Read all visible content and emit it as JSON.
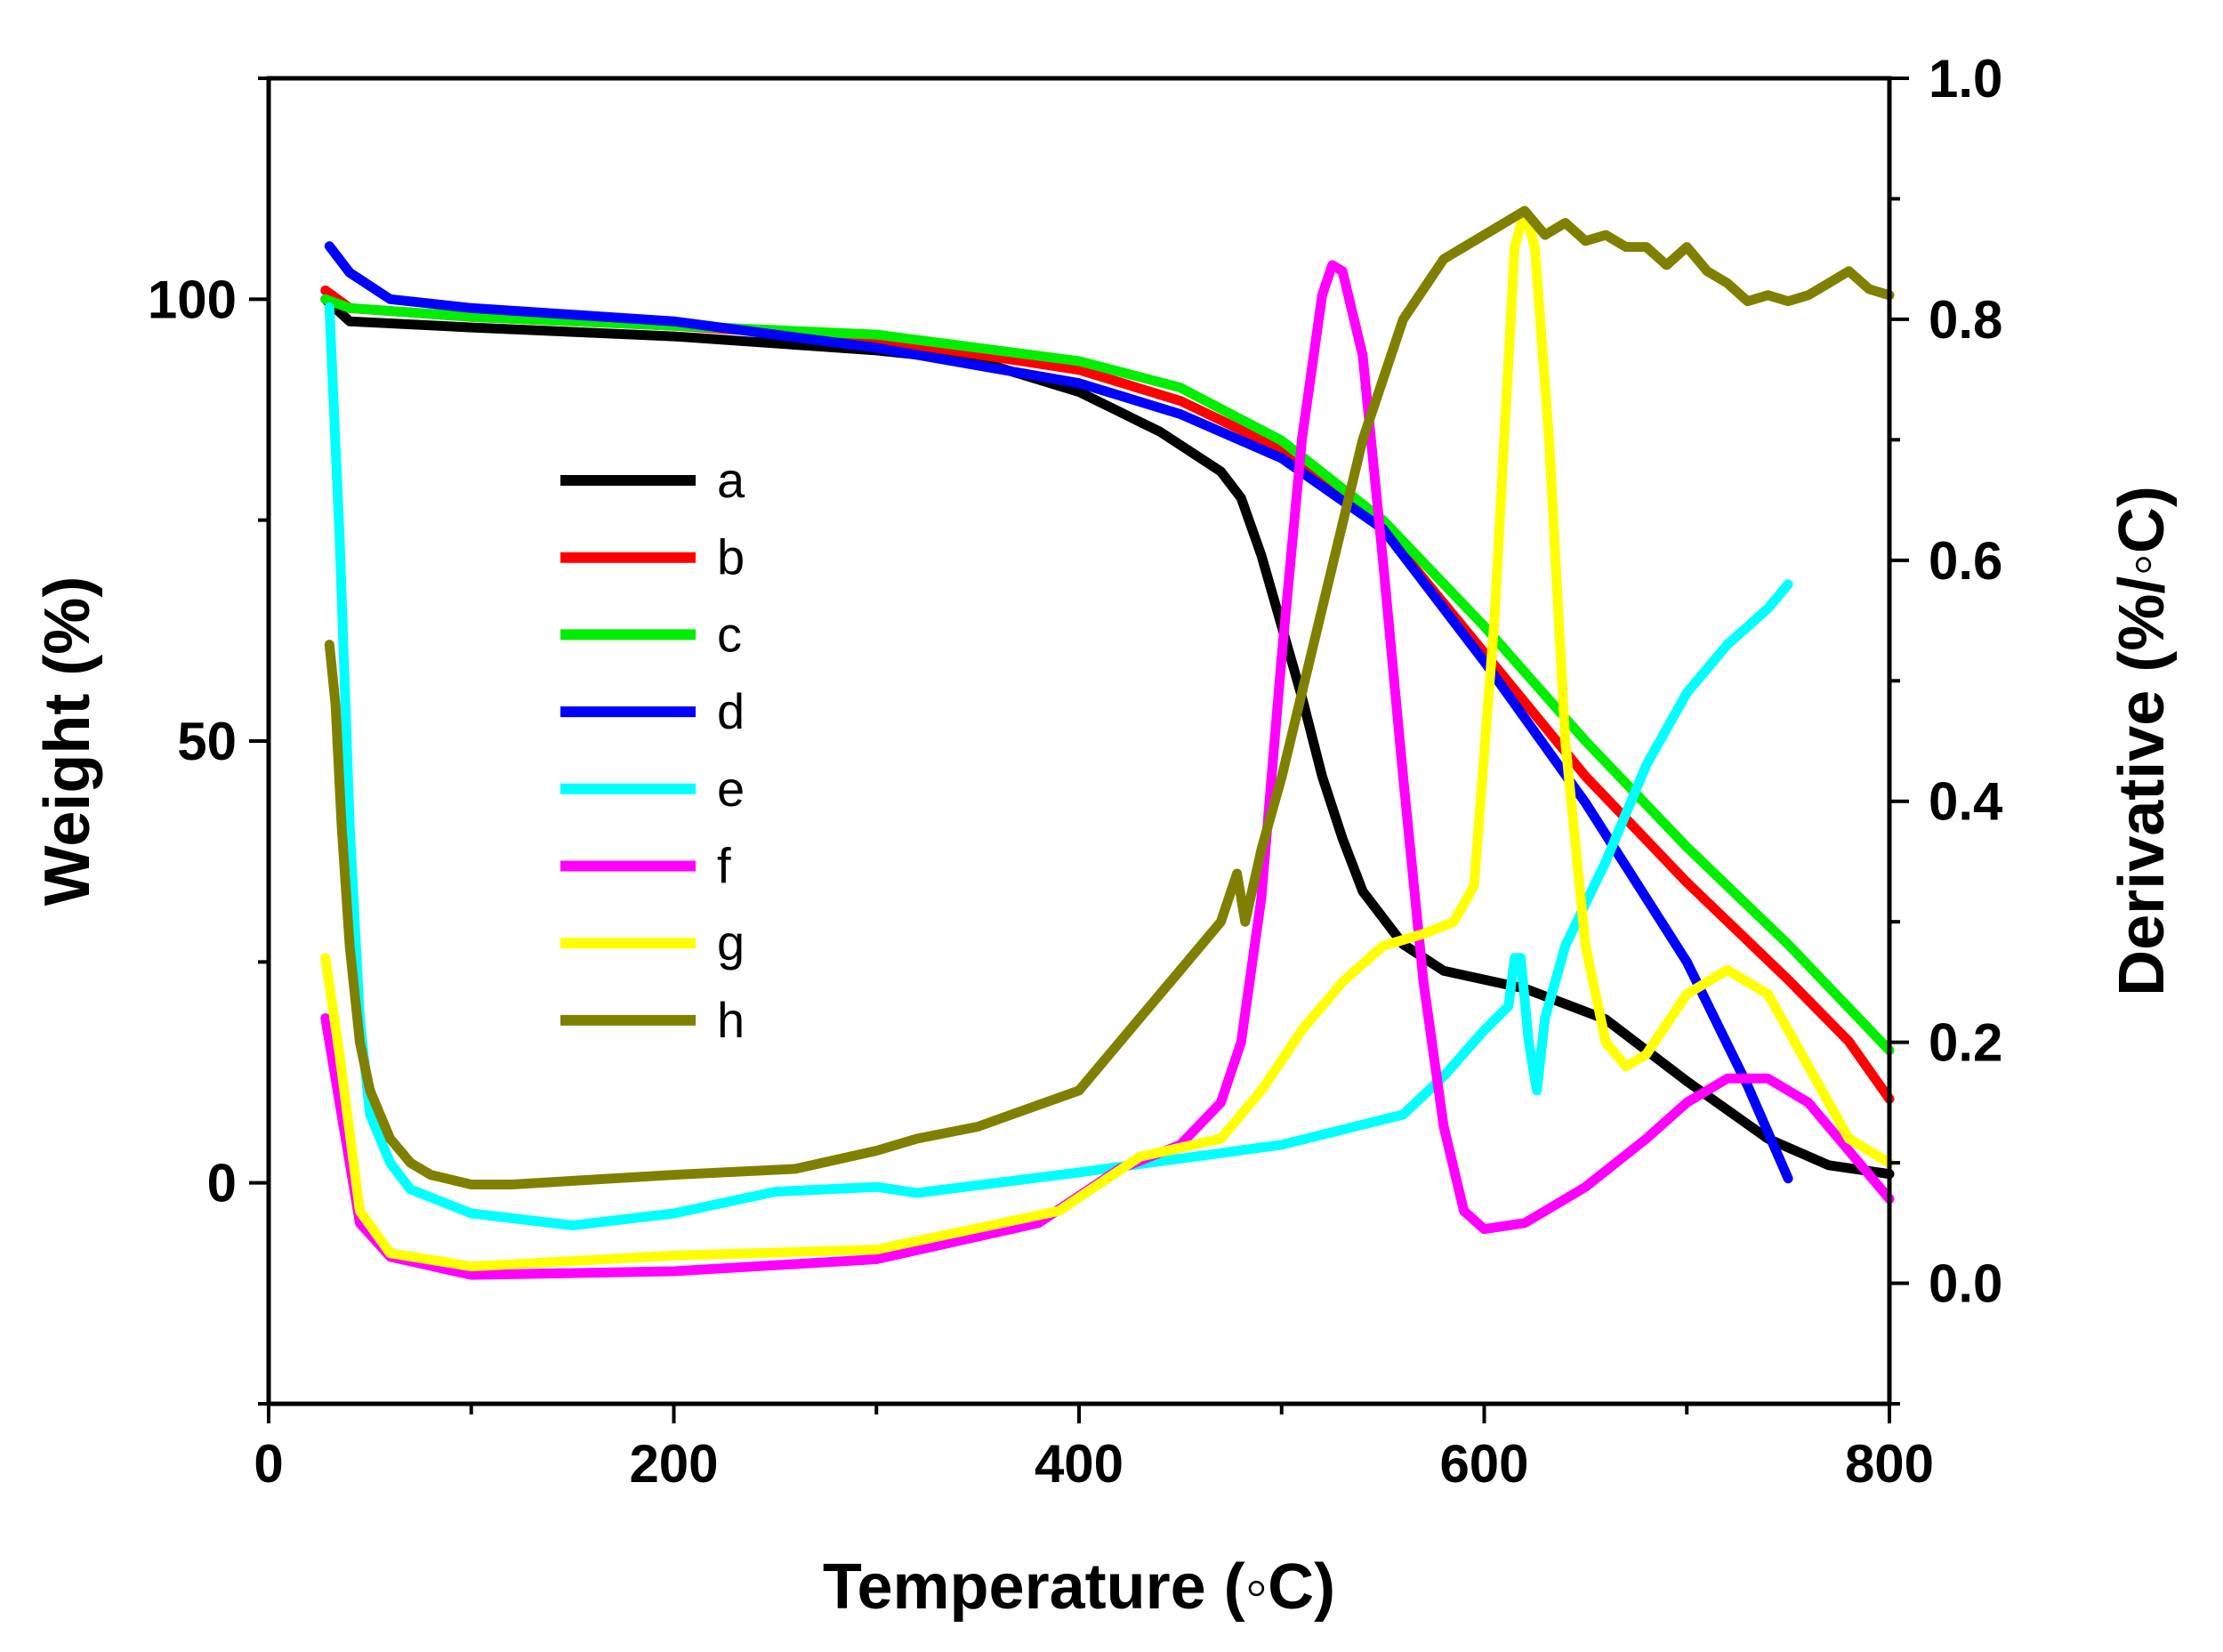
{
  "chart_data": {
    "type": "line",
    "title": "",
    "xlabel": "Temperature (◦C)",
    "ylabel": "Weight (%)",
    "y2label": "Derivative (%/◦C)",
    "xlim": [
      0,
      800
    ],
    "ylim": [
      -25,
      125
    ],
    "y2lim": [
      -0.1,
      1.0
    ],
    "x_ticks": [
      0,
      200,
      400,
      600,
      800
    ],
    "y_ticks": [
      0,
      50,
      100
    ],
    "y2_ticks": [
      0.0,
      0.2,
      0.4,
      0.6,
      0.8,
      1.0
    ],
    "x_tick_labels": [
      "0",
      "200",
      "400",
      "600",
      "800"
    ],
    "y_tick_labels": [
      "0",
      "50",
      "100"
    ],
    "y2_tick_labels": [
      "0.0",
      "0.2",
      "0.4",
      "0.6",
      "0.8",
      "1.0"
    ],
    "grid": false,
    "legend_position": "center-left",
    "series": [
      {
        "name": "a",
        "axis": "left",
        "color": "#000000",
        "x": [
          28,
          40,
          100,
          200,
          300,
          350,
          400,
          440,
          470,
          480,
          490,
          500,
          510,
          520,
          530,
          540,
          560,
          580,
          620,
          660,
          700,
          740,
          770,
          800
        ],
        "y": [
          100,
          97.5,
          96.8,
          95.8,
          94.2,
          93,
          89.5,
          85,
          80.5,
          77.5,
          71,
          63,
          55,
          46,
          39,
          33,
          27,
          24,
          22,
          18.5,
          11.5,
          5,
          2,
          1
        ]
      },
      {
        "name": "b",
        "axis": "left",
        "color": "#ff0000",
        "x": [
          28,
          40,
          100,
          200,
          300,
          400,
          450,
          500,
          550,
          600,
          650,
          700,
          750,
          780,
          800
        ],
        "y": [
          101,
          99,
          98,
          97,
          95.5,
          92,
          88.5,
          83,
          74,
          60,
          46,
          34,
          23,
          16,
          9.5
        ]
      },
      {
        "name": "c",
        "axis": "left",
        "color": "#00ee00",
        "x": [
          28,
          40,
          100,
          200,
          300,
          400,
          450,
          500,
          550,
          600,
          650,
          700,
          750,
          800
        ],
        "y": [
          100,
          99,
          98,
          97,
          96,
          93,
          90,
          84,
          75,
          63,
          50,
          38,
          27,
          15
        ]
      },
      {
        "name": "d",
        "axis": "left",
        "color": "#0000ff",
        "x": [
          30,
          40,
          60,
          100,
          200,
          300,
          400,
          450,
          500,
          550,
          600,
          650,
          700,
          730,
          750
        ],
        "y": [
          106,
          103,
          100,
          99,
          97.5,
          94.5,
          90.5,
          87,
          82,
          74,
          59,
          43,
          25,
          11,
          0.5
        ]
      },
      {
        "name": "e",
        "axis": "right",
        "color": "#00ffff",
        "x": [
          30,
          35,
          40,
          45,
          50,
          60,
          70,
          100,
          150,
          200,
          250,
          300,
          320,
          400,
          500,
          560,
          580,
          600,
          612,
          615,
          618,
          622,
          626,
          630,
          640,
          660,
          680,
          700,
          720,
          740,
          750
        ],
        "y": [
          0.81,
          0.62,
          0.38,
          0.22,
          0.14,
          0.1,
          0.078,
          0.058,
          0.048,
          0.058,
          0.076,
          0.08,
          0.075,
          0.092,
          0.115,
          0.14,
          0.172,
          0.21,
          0.23,
          0.27,
          0.27,
          0.2,
          0.16,
          0.22,
          0.28,
          0.35,
          0.43,
          0.49,
          0.53,
          0.56,
          0.58
        ]
      },
      {
        "name": "f",
        "axis": "right",
        "color": "#ff00ff",
        "x": [
          28,
          35,
          45,
          60,
          100,
          200,
          300,
          380,
          420,
          450,
          470,
          480,
          490,
          500,
          510,
          520,
          525,
          530,
          540,
          550,
          560,
          570,
          580,
          590,
          600,
          620,
          650,
          680,
          700,
          720,
          740,
          760,
          780,
          800
        ],
        "y": [
          0.22,
          0.15,
          0.05,
          0.022,
          0.007,
          0.01,
          0.02,
          0.05,
          0.095,
          0.115,
          0.15,
          0.2,
          0.32,
          0.52,
          0.7,
          0.82,
          0.845,
          0.84,
          0.77,
          0.6,
          0.42,
          0.25,
          0.13,
          0.06,
          0.045,
          0.05,
          0.08,
          0.12,
          0.15,
          0.17,
          0.17,
          0.15,
          0.11,
          0.07
        ]
      },
      {
        "name": "g",
        "axis": "right",
        "color": "#ffff00",
        "x": [
          28,
          35,
          45,
          60,
          100,
          200,
          300,
          390,
          430,
          470,
          490,
          510,
          530,
          550,
          570,
          585,
          595,
          605,
          615,
          620,
          625,
          632,
          640,
          650,
          660,
          670,
          680,
          700,
          720,
          740,
          760,
          780,
          800
        ],
        "y": [
          0.27,
          0.19,
          0.06,
          0.025,
          0.014,
          0.023,
          0.028,
          0.06,
          0.105,
          0.12,
          0.16,
          0.21,
          0.25,
          0.28,
          0.29,
          0.3,
          0.33,
          0.55,
          0.86,
          0.89,
          0.86,
          0.7,
          0.45,
          0.28,
          0.2,
          0.18,
          0.19,
          0.24,
          0.26,
          0.24,
          0.18,
          0.12,
          0.1
        ]
      },
      {
        "name": "h",
        "axis": "right",
        "color": "#808000",
        "x": [
          30,
          33,
          36,
          40,
          45,
          50,
          60,
          70,
          80,
          100,
          120,
          150,
          200,
          260,
          300,
          320,
          350,
          400,
          430,
          450,
          470,
          478,
          482,
          486,
          490,
          500,
          520,
          540,
          560,
          580,
          600,
          610,
          620,
          630,
          640,
          650,
          660,
          670,
          680,
          690,
          700,
          710,
          720,
          730,
          740,
          750,
          760,
          770,
          780,
          790,
          800
        ],
        "y": [
          0.53,
          0.48,
          0.38,
          0.28,
          0.2,
          0.16,
          0.12,
          0.1,
          0.09,
          0.082,
          0.082,
          0.085,
          0.09,
          0.095,
          0.11,
          0.12,
          0.13,
          0.16,
          0.22,
          0.26,
          0.3,
          0.34,
          0.3,
          0.33,
          0.36,
          0.42,
          0.56,
          0.7,
          0.8,
          0.85,
          0.87,
          0.88,
          0.89,
          0.87,
          0.88,
          0.865,
          0.87,
          0.86,
          0.86,
          0.845,
          0.86,
          0.84,
          0.83,
          0.815,
          0.82,
          0.815,
          0.82,
          0.83,
          0.84,
          0.825,
          0.82
        ]
      }
    ]
  }
}
